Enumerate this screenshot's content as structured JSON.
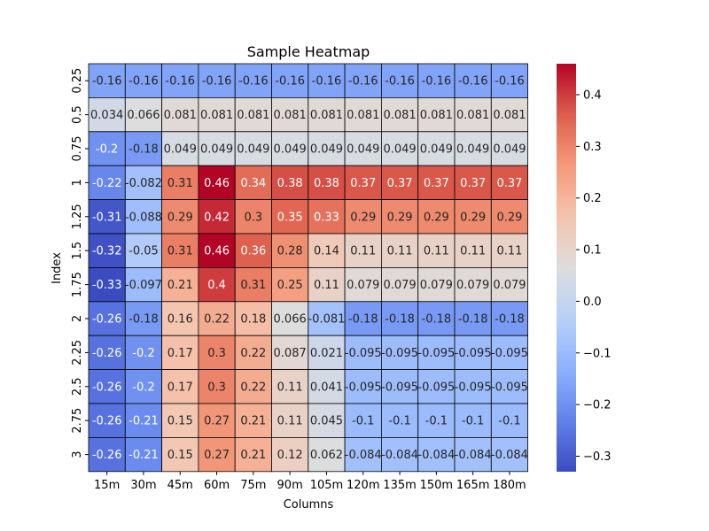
{
  "chart_data": {
    "type": "heatmap",
    "title": "Sample Heatmap",
    "xlabel": "Columns",
    "ylabel": "Index",
    "colormap": "coolwarm",
    "vmin": -0.33,
    "vmax": 0.46,
    "columns": [
      "15m",
      "30m",
      "45m",
      "60m",
      "75m",
      "90m",
      "105m",
      "120m",
      "135m",
      "150m",
      "165m",
      "180m"
    ],
    "rows": [
      "0.25",
      "0.5",
      "0.75",
      "1",
      "1.25",
      "1.5",
      "1.75",
      "2",
      "2.25",
      "2.5",
      "2.75",
      "3"
    ],
    "cell_labels": [
      [
        "-0.16",
        "-0.16",
        "-0.16",
        "-0.16",
        "-0.16",
        "-0.16",
        "-0.16",
        "-0.16",
        "-0.16",
        "-0.16",
        "-0.16",
        "-0.16"
      ],
      [
        "0.034",
        "0.066",
        "0.081",
        "0.081",
        "0.081",
        "0.081",
        "0.081",
        "0.081",
        "0.081",
        "0.081",
        "0.081",
        "0.081"
      ],
      [
        "-0.2",
        "-0.18",
        "0.049",
        "0.049",
        "0.049",
        "0.049",
        "0.049",
        "0.049",
        "0.049",
        "0.049",
        "0.049",
        "0.049"
      ],
      [
        "-0.22",
        "-0.082",
        "0.31",
        "0.46",
        "0.34",
        "0.38",
        "0.38",
        "0.37",
        "0.37",
        "0.37",
        "0.37",
        "0.37"
      ],
      [
        "-0.31",
        "-0.088",
        "0.29",
        "0.42",
        "0.3",
        "0.35",
        "0.33",
        "0.29",
        "0.29",
        "0.29",
        "0.29",
        "0.29"
      ],
      [
        "-0.32",
        "-0.05",
        "0.31",
        "0.46",
        "0.36",
        "0.28",
        "0.14",
        "0.11",
        "0.11",
        "0.11",
        "0.11",
        "0.11"
      ],
      [
        "-0.33",
        "-0.097",
        "0.21",
        "0.4",
        "0.31",
        "0.25",
        "0.11",
        "0.079",
        "0.079",
        "0.079",
        "0.079",
        "0.079"
      ],
      [
        "-0.26",
        "-0.18",
        "0.16",
        "0.22",
        "0.18",
        "0.066",
        "-0.081",
        "-0.18",
        "-0.18",
        "-0.18",
        "-0.18",
        "-0.18"
      ],
      [
        "-0.26",
        "-0.2",
        "0.17",
        "0.3",
        "0.22",
        "0.087",
        "0.021",
        "-0.095",
        "-0.095",
        "-0.095",
        "-0.095",
        "-0.095"
      ],
      [
        "-0.26",
        "-0.2",
        "0.17",
        "0.3",
        "0.22",
        "0.11",
        "0.041",
        "-0.095",
        "-0.095",
        "-0.095",
        "-0.095",
        "-0.095"
      ],
      [
        "-0.26",
        "-0.21",
        "0.15",
        "0.27",
        "0.21",
        "0.11",
        "0.045",
        "-0.1",
        "-0.1",
        "-0.1",
        "-0.1",
        "-0.1"
      ],
      [
        "-0.26",
        "-0.21",
        "0.15",
        "0.27",
        "0.21",
        "0.12",
        "0.062",
        "-0.084",
        "-0.084",
        "-0.084",
        "-0.084",
        "-0.084"
      ]
    ],
    "colorbar": {
      "ticks": [
        -0.3,
        -0.2,
        -0.1,
        0.0,
        0.1,
        0.2,
        0.3,
        0.4
      ],
      "tick_labels": [
        "−0.3",
        "−0.2",
        "−0.1",
        "0.0",
        "0.1",
        "0.2",
        "0.3",
        "0.4"
      ]
    },
    "cell_borders": true,
    "legend": "colorbar-right"
  }
}
